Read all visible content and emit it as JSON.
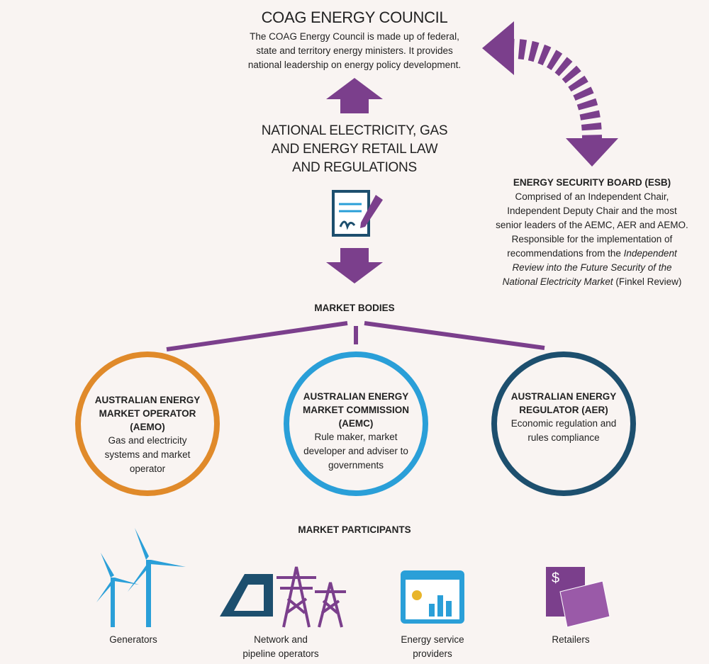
{
  "council": {
    "title": "COAG ENERGY COUNCIL",
    "lines": [
      "The COAG Energy Council is made up of federal,",
      "state and territory energy ministers. It provides",
      "national leadership on energy policy development."
    ]
  },
  "law": {
    "lines": [
      "NATIONAL ELECTRICITY, GAS",
      "AND ENERGY RETAIL LAW",
      "AND REGULATIONS"
    ]
  },
  "esb": {
    "title": "ENERGY SECURITY BOARD (ESB)",
    "lines": [
      [
        {
          "text": "Comprised of an Independent Chair,",
          "italic": false
        }
      ],
      [
        {
          "text": "Independent Deputy Chair and the most",
          "italic": false
        }
      ],
      [
        {
          "text": "senior leaders of the AEMC, AER and AEMO.",
          "italic": false
        }
      ],
      [
        {
          "text": "Responsible for the implementation of",
          "italic": false
        }
      ],
      [
        {
          "text": "recommendations from the ",
          "italic": false
        },
        {
          "text": "Independent",
          "italic": true
        }
      ],
      [
        {
          "text": "Review into the Future Security of the",
          "italic": true
        }
      ],
      [
        {
          "text": "National Electricity Market",
          "italic": true
        },
        {
          "text": " (Finkel Review)",
          "italic": false
        }
      ]
    ]
  },
  "market_bodies": {
    "title": "MARKET BODIES",
    "bodies": [
      {
        "name": [
          "AUSTRALIAN ENERGY",
          "MARKET OPERATOR",
          "(AEMO)"
        ],
        "description": [
          "Gas and electricity",
          "systems and market",
          "operator"
        ],
        "color": "#e08a2a"
      },
      {
        "name": [
          "AUSTRALIAN ENERGY",
          "MARKET COMMISSION",
          "(AEMC)"
        ],
        "description": [
          "Rule maker, market",
          "developer and adviser to",
          "governments"
        ],
        "color": "#2a9fd8"
      },
      {
        "name": [
          "AUSTRALIAN ENERGY",
          "REGULATOR (AER)"
        ],
        "description": [
          "Economic regulation and",
          "rules compliance"
        ],
        "color": "#1d4f6e"
      }
    ]
  },
  "participants": {
    "title": "MARKET PARTICIPANTS",
    "items": [
      {
        "label": [
          "Generators"
        ]
      },
      {
        "label": [
          "Network and",
          "pipeline operators"
        ]
      },
      {
        "label": [
          "Energy service",
          "providers"
        ]
      },
      {
        "label": [
          "Retailers"
        ]
      }
    ]
  }
}
